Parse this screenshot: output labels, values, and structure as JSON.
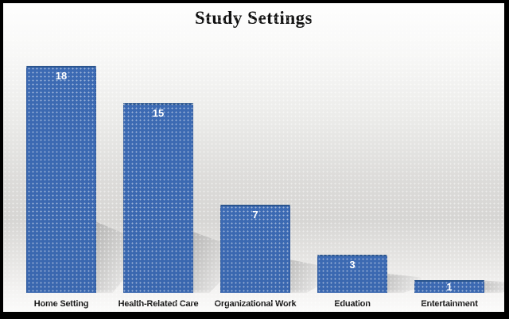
{
  "chart_data": {
    "type": "bar",
    "title": "Study Settings",
    "categories": [
      "Home Setting",
      "Health-Related Care",
      "Organizational Work",
      "Eduation",
      "Entertainment"
    ],
    "values": [
      18,
      15,
      7,
      3,
      1
    ],
    "xlabel": "",
    "ylabel": "",
    "ylim": [
      0,
      18
    ],
    "gridlines": "off",
    "legend": "none",
    "axis_lines": "none",
    "data_labels": "inside-end",
    "colors": {
      "bar_fill": "#3c6ab3",
      "bar_top_edge": "#2b558e",
      "value_label": "#ffffff",
      "category_label": "#131313",
      "frame_border": "#000000",
      "background_top": "#fefefe",
      "background_mid": "#d6d5d3",
      "background_bottom": "#fbfbfa",
      "shadow": "#9a9a9a"
    }
  }
}
